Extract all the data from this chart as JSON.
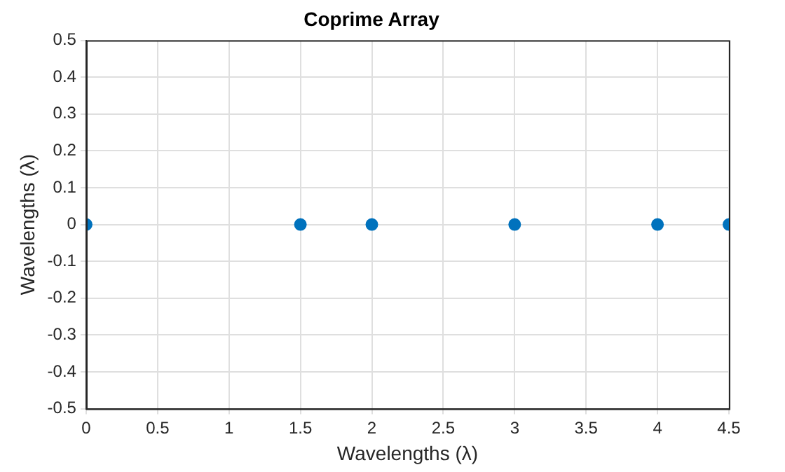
{
  "chart_data": {
    "type": "scatter",
    "title": "Coprime Array",
    "xlabel": "Wavelengths (λ)",
    "ylabel": "Wavelengths (λ)",
    "series": [
      {
        "x": [
          0,
          1.5,
          2,
          3,
          4,
          4.5
        ],
        "values": [
          0,
          0,
          0,
          0,
          0,
          0
        ],
        "color": "#0072bd"
      }
    ],
    "xlim": [
      0,
      4.5
    ],
    "xticks": [
      0,
      0.5,
      1,
      1.5,
      2,
      2.5,
      3,
      3.5,
      4,
      4.5
    ],
    "ylim": [
      -0.5,
      0.5
    ],
    "yticks": [
      -0.5,
      -0.4,
      -0.3,
      -0.2,
      -0.1,
      0,
      0.1,
      0.2,
      0.3,
      0.4,
      0.5
    ],
    "grid": true,
    "legend": false,
    "marker": "circle"
  }
}
